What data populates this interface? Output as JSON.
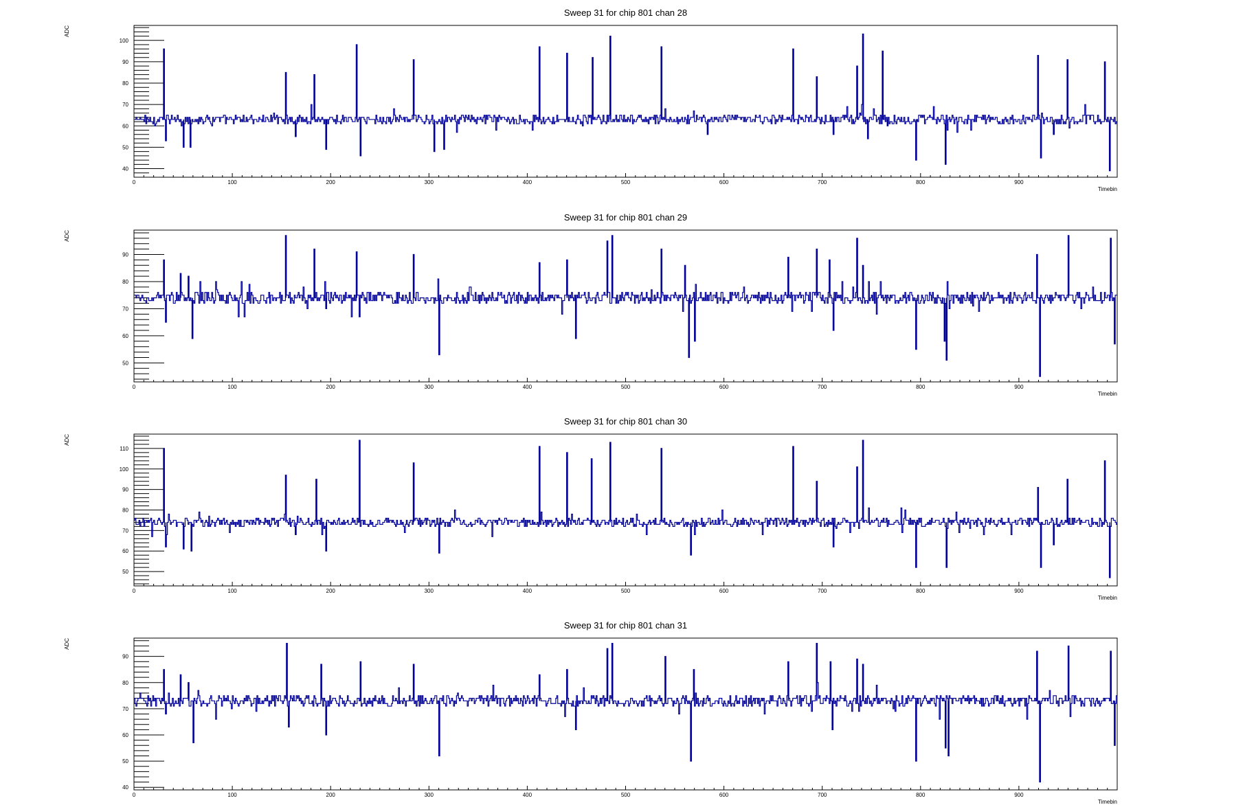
{
  "chart_data": [
    {
      "type": "line",
      "title": "Sweep 31 for chip 801 chan 28",
      "xlabel": "Timebin",
      "ylabel": "ADC",
      "xlim": [
        0,
        1000
      ],
      "ylim": [
        36,
        107
      ],
      "xticks": [
        0,
        100,
        200,
        300,
        400,
        500,
        600,
        700,
        800,
        900
      ],
      "yticks": [
        40,
        50,
        60,
        70,
        80,
        90,
        100
      ],
      "baseline": 63,
      "spikes": [
        [
          30,
          96
        ],
        [
          32,
          53
        ],
        [
          50,
          50
        ],
        [
          57,
          50
        ],
        [
          154,
          85
        ],
        [
          164,
          55
        ],
        [
          183,
          84
        ],
        [
          195,
          49
        ],
        [
          226,
          98
        ],
        [
          230,
          46
        ],
        [
          284,
          91
        ],
        [
          305,
          48
        ],
        [
          315,
          49
        ],
        [
          412,
          97
        ],
        [
          440,
          94
        ],
        [
          466,
          92
        ],
        [
          484,
          102
        ],
        [
          536,
          97
        ],
        [
          583,
          56
        ],
        [
          670,
          96
        ],
        [
          694,
          83
        ],
        [
          711,
          56
        ],
        [
          735,
          88
        ],
        [
          741,
          103
        ],
        [
          746,
          54
        ],
        [
          761,
          95
        ],
        [
          766,
          60
        ],
        [
          795,
          44
        ],
        [
          825,
          42
        ],
        [
          919,
          93
        ],
        [
          922,
          45
        ],
        [
          935,
          56
        ],
        [
          949,
          91
        ],
        [
          987,
          90
        ],
        [
          992,
          39
        ]
      ],
      "series": [
        {
          "color": "#000099"
        }
      ]
    },
    {
      "type": "line",
      "title": "Sweep 31 for chip 801 chan 29",
      "xlabel": "Timebin",
      "ylabel": "ADC",
      "xlim": [
        0,
        1000
      ],
      "ylim": [
        43,
        99
      ],
      "xticks": [
        0,
        100,
        200,
        300,
        400,
        500,
        600,
        700,
        800,
        900
      ],
      "yticks": [
        50,
        60,
        70,
        80,
        90
      ],
      "baseline": 74,
      "spikes": [
        [
          30,
          88
        ],
        [
          32,
          65
        ],
        [
          47,
          83
        ],
        [
          55,
          82
        ],
        [
          59,
          59
        ],
        [
          154,
          97
        ],
        [
          183,
          92
        ],
        [
          195,
          70
        ],
        [
          226,
          91
        ],
        [
          229,
          67
        ],
        [
          284,
          90
        ],
        [
          310,
          53
        ],
        [
          412,
          87
        ],
        [
          440,
          88
        ],
        [
          449,
          59
        ],
        [
          481,
          95
        ],
        [
          486,
          97
        ],
        [
          536,
          92
        ],
        [
          560,
          86
        ],
        [
          564,
          52
        ],
        [
          570,
          58
        ],
        [
          665,
          89
        ],
        [
          694,
          92
        ],
        [
          707,
          88
        ],
        [
          711,
          62
        ],
        [
          735,
          96
        ],
        [
          741,
          86
        ],
        [
          795,
          55
        ],
        [
          824,
          58
        ],
        [
          826,
          51
        ],
        [
          918,
          90
        ],
        [
          921,
          45
        ],
        [
          950,
          97
        ],
        [
          993,
          96
        ],
        [
          997,
          57
        ]
      ],
      "series": [
        {
          "color": "#000099"
        }
      ]
    },
    {
      "type": "line",
      "title": "Sweep 31 for chip 801 chan 30",
      "xlabel": "Timebin",
      "ylabel": "ADC",
      "xlim": [
        0,
        1000
      ],
      "ylim": [
        43,
        117
      ],
      "xticks": [
        0,
        100,
        200,
        300,
        400,
        500,
        600,
        700,
        800,
        900
      ],
      "yticks": [
        50,
        60,
        70,
        80,
        90,
        100,
        110
      ],
      "baseline": 74,
      "spikes": [
        [
          30,
          110
        ],
        [
          32,
          62
        ],
        [
          50,
          61
        ],
        [
          58,
          60
        ],
        [
          154,
          97
        ],
        [
          164,
          68
        ],
        [
          185,
          95
        ],
        [
          195,
          60
        ],
        [
          229,
          114
        ],
        [
          284,
          103
        ],
        [
          310,
          59
        ],
        [
          412,
          111
        ],
        [
          440,
          108
        ],
        [
          465,
          105
        ],
        [
          484,
          113
        ],
        [
          536,
          110
        ],
        [
          566,
          58
        ],
        [
          670,
          111
        ],
        [
          694,
          94
        ],
        [
          711,
          62
        ],
        [
          735,
          101
        ],
        [
          741,
          114
        ],
        [
          795,
          52
        ],
        [
          826,
          52
        ],
        [
          919,
          91
        ],
        [
          922,
          52
        ],
        [
          935,
          63
        ],
        [
          949,
          95
        ],
        [
          987,
          104
        ],
        [
          992,
          47
        ]
      ],
      "series": [
        {
          "color": "#000099"
        }
      ]
    },
    {
      "type": "line",
      "title": "Sweep 31 for chip 801 chan 31",
      "xlabel": "Timebin",
      "ylabel": "ADC",
      "xlim": [
        0,
        1000
      ],
      "ylim": [
        39,
        97
      ],
      "xticks": [
        0,
        100,
        200,
        300,
        400,
        500,
        600,
        700,
        800,
        900
      ],
      "yticks": [
        40,
        50,
        60,
        70,
        80,
        90
      ],
      "baseline": 73,
      "spikes": [
        [
          30,
          85
        ],
        [
          32,
          68
        ],
        [
          47,
          83
        ],
        [
          55,
          80
        ],
        [
          60,
          57
        ],
        [
          155,
          95
        ],
        [
          157,
          63
        ],
        [
          190,
          87
        ],
        [
          195,
          60
        ],
        [
          230,
          88
        ],
        [
          284,
          87
        ],
        [
          310,
          52
        ],
        [
          412,
          83
        ],
        [
          440,
          85
        ],
        [
          449,
          62
        ],
        [
          481,
          93
        ],
        [
          486,
          95
        ],
        [
          540,
          90
        ],
        [
          566,
          50
        ],
        [
          569,
          85
        ],
        [
          665,
          88
        ],
        [
          694,
          95
        ],
        [
          708,
          88
        ],
        [
          710,
          62
        ],
        [
          735,
          89
        ],
        [
          741,
          87
        ],
        [
          795,
          50
        ],
        [
          825,
          55
        ],
        [
          828,
          52
        ],
        [
          918,
          92
        ],
        [
          921,
          42
        ],
        [
          950,
          94
        ],
        [
          993,
          92
        ],
        [
          997,
          56
        ]
      ],
      "series": [
        {
          "color": "#000099"
        }
      ]
    }
  ]
}
